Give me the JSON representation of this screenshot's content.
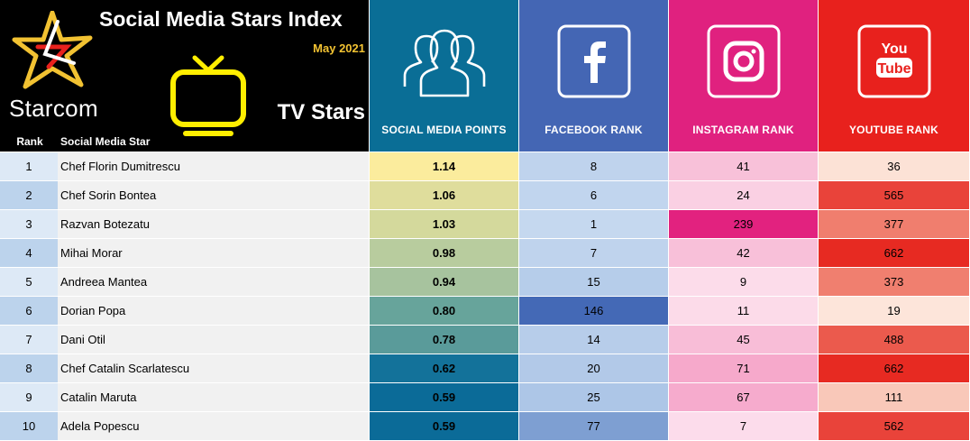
{
  "header": {
    "title": "Social Media Stars Index",
    "subtitle": "May 2021",
    "brand": "Starcom",
    "category": "TV Stars",
    "col_rank": "Rank",
    "col_star": "Social Media Star",
    "col_points": "SOCIAL MEDIA POINTS",
    "col_facebook": "FACEBOOK RANK",
    "col_instagram": "INSTAGRAM RANK",
    "col_youtube": "YOUTUBE RANK"
  },
  "colors": {
    "header_points": "#0a6e96",
    "header_facebook": "#4466b4",
    "header_instagram": "#e0217f",
    "header_youtube": "#e8211d",
    "title_accent": "#f2c232",
    "tv_icon": "#ffee00"
  },
  "chart_data": {
    "type": "table",
    "title": "Social Media Stars Index",
    "subtitle": "May 2021",
    "columns": [
      "Rank",
      "Social Media Star",
      "SOCIAL MEDIA POINTS",
      "FACEBOOK RANK",
      "INSTAGRAM RANK",
      "YOUTUBE RANK"
    ],
    "rows": [
      {
        "rank": "1",
        "name": "Chef Florin Dumitrescu",
        "points": "1.14",
        "facebook": "8",
        "instagram": "41",
        "youtube": "36"
      },
      {
        "rank": "2",
        "name": "Chef Sorin Bontea",
        "points": "1.06",
        "facebook": "6",
        "instagram": "24",
        "youtube": "565"
      },
      {
        "rank": "3",
        "name": "Razvan Botezatu",
        "points": "1.03",
        "facebook": "1",
        "instagram": "239",
        "youtube": "377"
      },
      {
        "rank": "4",
        "name": "Mihai Morar",
        "points": "0.98",
        "facebook": "7",
        "instagram": "42",
        "youtube": "662"
      },
      {
        "rank": "5",
        "name": "Andreea Mantea",
        "points": "0.94",
        "facebook": "15",
        "instagram": "9",
        "youtube": "373"
      },
      {
        "rank": "6",
        "name": "Dorian Popa",
        "points": "0.80",
        "facebook": "146",
        "instagram": "11",
        "youtube": "19"
      },
      {
        "rank": "7",
        "name": "Dani Otil",
        "points": "0.78",
        "facebook": "14",
        "instagram": "45",
        "youtube": "488"
      },
      {
        "rank": "8",
        "name": "Chef Catalin Scarlatescu",
        "points": "0.62",
        "facebook": "20",
        "instagram": "71",
        "youtube": "662"
      },
      {
        "rank": "9",
        "name": "Catalin Maruta",
        "points": "0.59",
        "facebook": "25",
        "instagram": "67",
        "youtube": "111"
      },
      {
        "rank": "10",
        "name": "Adela Popescu",
        "points": "0.59",
        "facebook": "77",
        "instagram": "7",
        "youtube": "562"
      }
    ],
    "cell_colors": {
      "rank": [
        "#dde9f6",
        "#bcd3ec",
        "#dde9f6",
        "#bcd3ec",
        "#dde9f6",
        "#bcd3ec",
        "#dde9f6",
        "#bcd3ec",
        "#dde9f6",
        "#bcd3ec"
      ],
      "points": [
        "#fbec9d",
        "#dfdd9c",
        "#d4d99c",
        "#b8cc9e",
        "#a7c39e",
        "#67a49b",
        "#5a9b9a",
        "#13729a",
        "#0b6b98",
        "#0b6b98"
      ],
      "facebook": [
        "#bfd3ed",
        "#c1d5ee",
        "#c5d8ef",
        "#bfd3ed",
        "#b6cdea",
        "#4469b6",
        "#b7cdea",
        "#b2c9e8",
        "#adc6e7",
        "#7e9fd2"
      ],
      "instagram": [
        "#f8c1d9",
        "#fad0e3",
        "#e2227f",
        "#f8c0d9",
        "#fcdcea",
        "#fcdbe9",
        "#f8bdd7",
        "#f6a9cb",
        "#f6abcd",
        "#fcdceb"
      ],
      "youtube": [
        "#fce2d6",
        "#e9433a",
        "#f07e6e",
        "#e72a22",
        "#f07f6f",
        "#fde5da",
        "#eb5a4d",
        "#e72a22",
        "#f9c8b9",
        "#e9433a"
      ]
    }
  }
}
